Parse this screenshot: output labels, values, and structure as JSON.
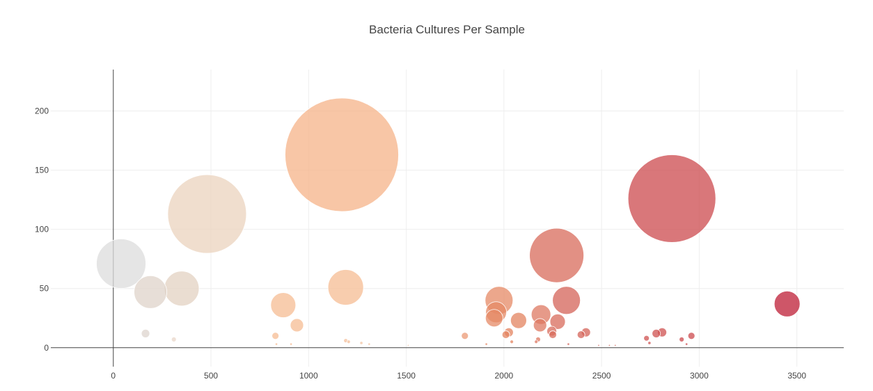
{
  "chart_data": {
    "type": "scatter",
    "title": "Bacteria Cultures Per Sample",
    "xlabel": "",
    "ylabel": "",
    "xlim": [
      -320,
      3740
    ],
    "ylim": [
      -16,
      235
    ],
    "x_ticks": [
      0,
      500,
      1000,
      1500,
      2000,
      2500,
      3000,
      3500
    ],
    "y_ticks": [
      0,
      50,
      100,
      150,
      200
    ],
    "grid": true,
    "marker_opacity": 0.75,
    "colorscale": "Earth",
    "points": [
      {
        "x": 40,
        "y": 71,
        "size": 71,
        "color": "#dcdcdc"
      },
      {
        "x": 190,
        "y": 47,
        "size": 47,
        "color": "#dfd3ca"
      },
      {
        "x": 350,
        "y": 50,
        "size": 50,
        "color": "#e3d1c1"
      },
      {
        "x": 480,
        "y": 113,
        "size": 113,
        "color": "#ebd3bd"
      },
      {
        "x": 165,
        "y": 12,
        "size": 12,
        "color": "#ddd4cd"
      },
      {
        "x": 310,
        "y": 7,
        "size": 7,
        "color": "#e9d7c9"
      },
      {
        "x": 870,
        "y": 36,
        "size": 36,
        "color": "#f6bc93"
      },
      {
        "x": 940,
        "y": 19,
        "size": 19,
        "color": "#f6bc93"
      },
      {
        "x": 830,
        "y": 10,
        "size": 10,
        "color": "#f6bc93"
      },
      {
        "x": 1170,
        "y": 163,
        "size": 163,
        "color": "#f6b388"
      },
      {
        "x": 1190,
        "y": 51,
        "size": 51,
        "color": "#f6bc93"
      },
      {
        "x": 1190,
        "y": 6,
        "size": 6,
        "color": "#f4c09c"
      },
      {
        "x": 1205,
        "y": 5,
        "size": 5,
        "color": "#f4c09c"
      },
      {
        "x": 1270,
        "y": 4,
        "size": 4,
        "color": "#f2c4a3"
      },
      {
        "x": 1800,
        "y": 10,
        "size": 10,
        "color": "#eb9a76"
      },
      {
        "x": 1975,
        "y": 40,
        "size": 40,
        "color": "#e68a66"
      },
      {
        "x": 1960,
        "y": 30,
        "size": 30,
        "color": "#e68a66"
      },
      {
        "x": 1950,
        "y": 25,
        "size": 25,
        "color": "#e68a66"
      },
      {
        "x": 2075,
        "y": 23,
        "size": 23,
        "color": "#e3835f"
      },
      {
        "x": 2025,
        "y": 13,
        "size": 13,
        "color": "#e3835f"
      },
      {
        "x": 2010,
        "y": 11,
        "size": 11,
        "color": "#e3835f"
      },
      {
        "x": 2040,
        "y": 5,
        "size": 5,
        "color": "#e3835f"
      },
      {
        "x": 2190,
        "y": 28,
        "size": 28,
        "color": "#de7862"
      },
      {
        "x": 2185,
        "y": 19,
        "size": 19,
        "color": "#de7862"
      },
      {
        "x": 2175,
        "y": 7,
        "size": 7,
        "color": "#de7862"
      },
      {
        "x": 2165,
        "y": 5,
        "size": 5,
        "color": "#de7862"
      },
      {
        "x": 2270,
        "y": 78,
        "size": 78,
        "color": "#d86b5b"
      },
      {
        "x": 2275,
        "y": 22,
        "size": 22,
        "color": "#d86b5b"
      },
      {
        "x": 2245,
        "y": 14,
        "size": 14,
        "color": "#d86b5b"
      },
      {
        "x": 2250,
        "y": 11,
        "size": 11,
        "color": "#d86b5b"
      },
      {
        "x": 2320,
        "y": 40,
        "size": 40,
        "color": "#d46358"
      },
      {
        "x": 2420,
        "y": 13,
        "size": 13,
        "color": "#d46358"
      },
      {
        "x": 2395,
        "y": 11,
        "size": 11,
        "color": "#d46358"
      },
      {
        "x": 2860,
        "y": 126,
        "size": 126,
        "color": "#cc4a4e"
      },
      {
        "x": 2730,
        "y": 8,
        "size": 8,
        "color": "#cf5150"
      },
      {
        "x": 2780,
        "y": 12,
        "size": 12,
        "color": "#cf5150"
      },
      {
        "x": 2810,
        "y": 13,
        "size": 13,
        "color": "#cf5150"
      },
      {
        "x": 2745,
        "y": 4,
        "size": 4,
        "color": "#cf5150"
      },
      {
        "x": 2910,
        "y": 7,
        "size": 7,
        "color": "#cc4a4e"
      },
      {
        "x": 2960,
        "y": 10,
        "size": 10,
        "color": "#cc4a4e"
      },
      {
        "x": 2935,
        "y": 3,
        "size": 3,
        "color": "#cc4a4e"
      },
      {
        "x": 3450,
        "y": 37,
        "size": 37,
        "color": "#bd1e36"
      },
      {
        "x": 835,
        "y": 3,
        "size": 3,
        "color": "#f6bc93"
      },
      {
        "x": 910,
        "y": 3,
        "size": 3,
        "color": "#f6bc93"
      },
      {
        "x": 1310,
        "y": 3,
        "size": 3,
        "color": "#f2c4a3"
      },
      {
        "x": 1510,
        "y": 2,
        "size": 2,
        "color": "#f0c7a8"
      },
      {
        "x": 1910,
        "y": 3,
        "size": 3,
        "color": "#e68a66"
      },
      {
        "x": 2330,
        "y": 3,
        "size": 3,
        "color": "#d46358"
      },
      {
        "x": 2485,
        "y": 2,
        "size": 2,
        "color": "#d46358"
      },
      {
        "x": 2540,
        "y": 2,
        "size": 2,
        "color": "#d46358"
      },
      {
        "x": 2570,
        "y": 2,
        "size": 2,
        "color": "#d46358"
      }
    ]
  }
}
